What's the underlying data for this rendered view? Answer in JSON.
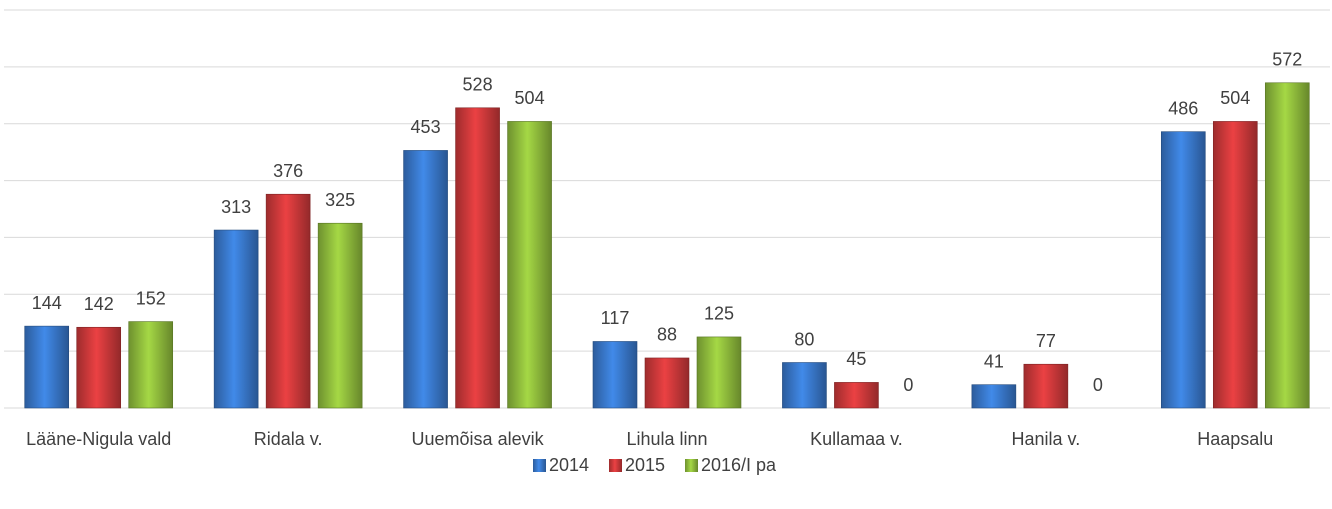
{
  "chart_data": {
    "type": "bar",
    "categories": [
      "Lääne-Nigula vald",
      "Ridala v.",
      "Uuemõisa alevik",
      "Lihula linn",
      "Kullamaa v.",
      "Hanila v.",
      "Haapsalu"
    ],
    "series": [
      {
        "name": "2014",
        "color": "#3a7bd0",
        "values": [
          144,
          313,
          453,
          117,
          80,
          41,
          486
        ]
      },
      {
        "name": "2015",
        "color": "#d23a3c",
        "values": [
          142,
          376,
          528,
          88,
          45,
          77,
          504
        ]
      },
      {
        "name": "2016/I pa",
        "color": "#93c13e",
        "values": [
          152,
          325,
          504,
          125,
          0,
          0,
          572
        ]
      }
    ],
    "ylim": [
      0,
      700
    ],
    "yticks": [
      0,
      100,
      200,
      300,
      400,
      500,
      600,
      700
    ],
    "grid": true,
    "legend": "bottom"
  }
}
